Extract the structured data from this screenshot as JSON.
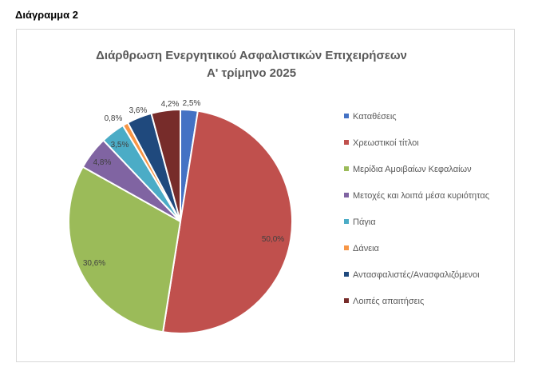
{
  "heading": "Διάγραμμα 2",
  "chart_data": {
    "type": "pie",
    "title": "Διάρθρωση Ενεργητικού Ασφαλιστικών Επιχειρήσεων",
    "subtitle": "Α' τρίμηνο 2025",
    "legend_position": "right",
    "categories": [
      "Καταθέσεις",
      "Χρεωστικοί τίτλοι",
      "Μερίδια Αμοιβαίων Κεφαλαίων",
      "Μετοχές και λοιπά μέσα κυριότητας",
      "Πάγια",
      "Δάνεια",
      "Αντασφαλιστές/Ανασφαλιζόμενοι",
      "Λοιπές απαιτήσεις"
    ],
    "values": [
      2.5,
      50.0,
      30.6,
      4.8,
      3.5,
      0.8,
      3.6,
      4.2
    ],
    "data_labels": [
      "2,5%",
      "50,0%",
      "30,6%",
      "4,8%",
      "3,5%",
      "0,8%",
      "3,6%",
      "4,2%"
    ],
    "colors": [
      "#4472c4",
      "#c0504d",
      "#9bbb59",
      "#8064a2",
      "#4bacc6",
      "#f79646",
      "#1f497d",
      "#772c2a"
    ]
  }
}
